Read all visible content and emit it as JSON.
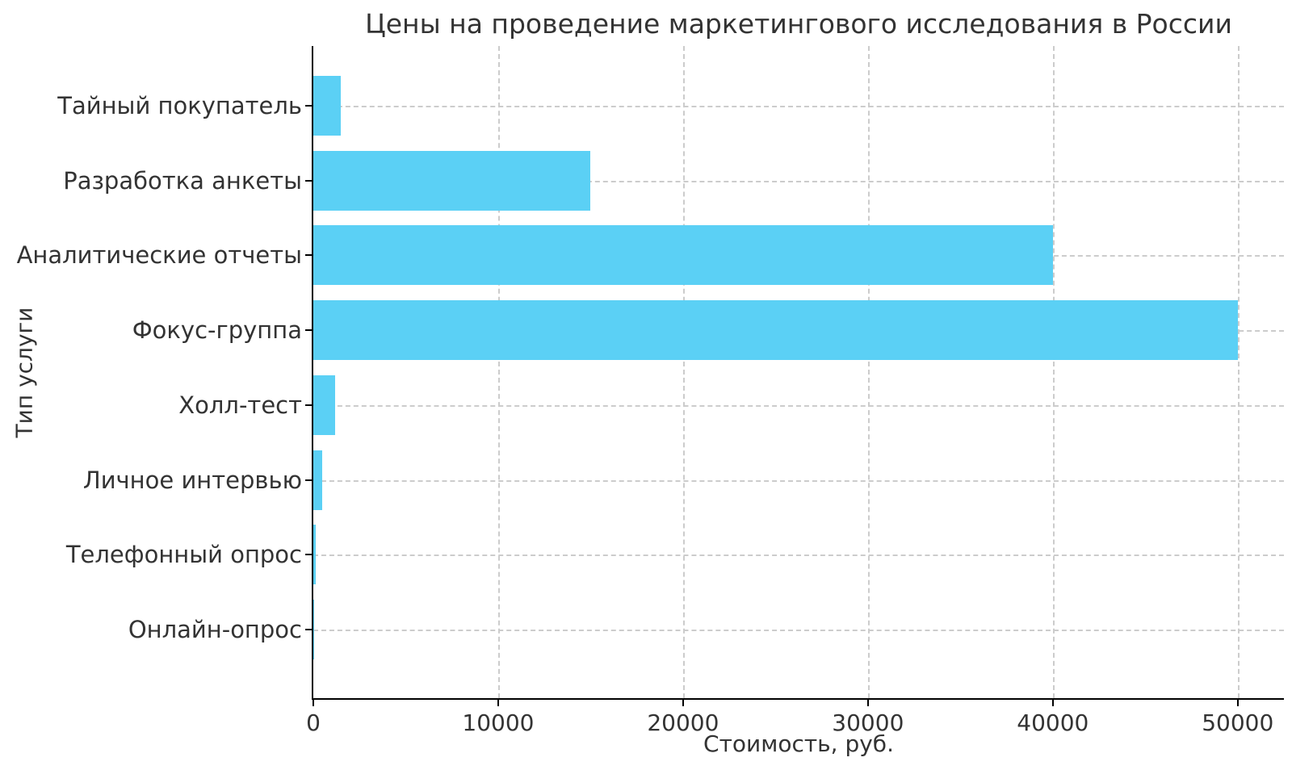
{
  "chart_data": {
    "type": "bar",
    "orientation": "horizontal",
    "title": "Цены на проведение маркетингового исследования в России",
    "xlabel": "Стоимость, руб.",
    "ylabel": "Тип услуги",
    "categories": [
      "Тайный покупатель",
      "Разработка анкеты",
      "Аналитические отчеты",
      "Фокус-группа",
      "Холл-тест",
      "Личное интервью",
      "Телефонный опрос",
      "Онлайн-опрос"
    ],
    "values": [
      1500,
      15000,
      40000,
      50000,
      1200,
      500,
      150,
      50
    ],
    "xticks": [
      0,
      10000,
      20000,
      30000,
      40000,
      50000
    ],
    "xlim": [
      0,
      52500
    ],
    "grid": true,
    "grid_style": "dashed",
    "legend": "none",
    "colors": {
      "bar": "#5bd0f5",
      "grid": "#cccccc",
      "spine": "#000000",
      "text": "#333333",
      "background": "#ffffff"
    }
  }
}
